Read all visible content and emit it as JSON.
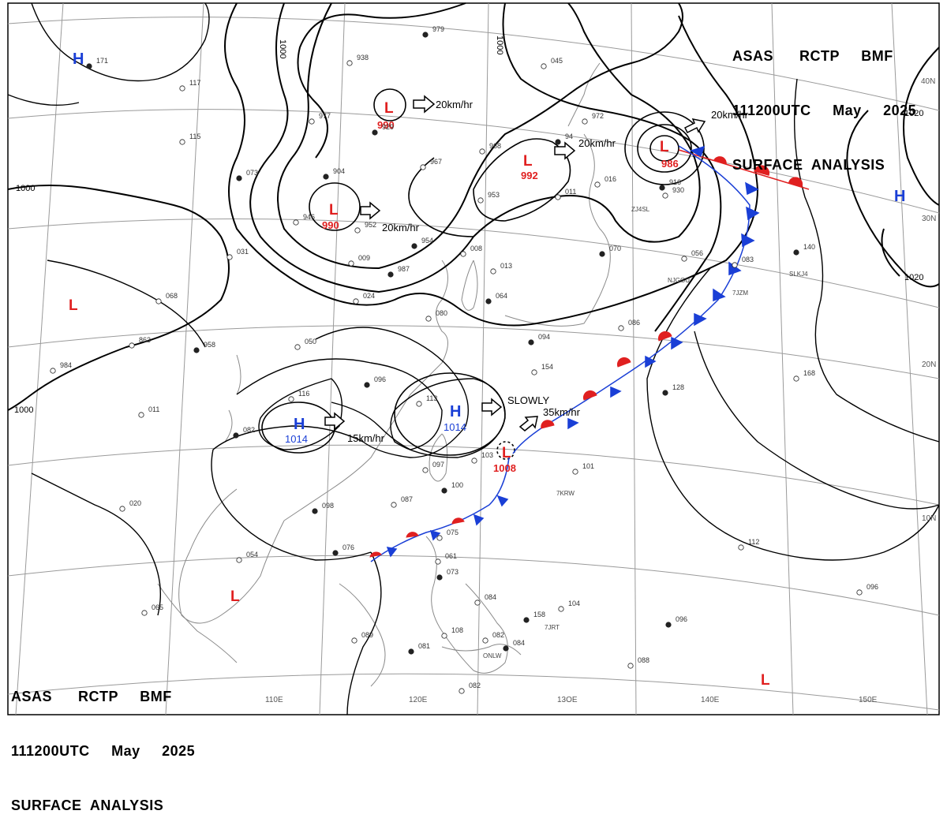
{
  "header_top": {
    "line1": "ASAS      RCTP     BMF",
    "line2": "111200UTC     May     2025",
    "line3": "SURFACE  ANALYSIS"
  },
  "header_bottom": {
    "line1": "ASAS      RCTP     BMF",
    "line2": "111200UTC     May     2025",
    "line3": "SURFACE  ANALYSIS"
  },
  "lon_labels": [
    "110E",
    "120E",
    "13OE",
    "140E",
    "150E"
  ],
  "lat_labels": [
    "40N",
    "30N",
    "20N",
    "10N"
  ],
  "isobar_labels": [
    "1000",
    "1000",
    "1000",
    "1000",
    "1020",
    "1020"
  ],
  "pressure_centers": [
    {
      "type": "L",
      "value": "990"
    },
    {
      "type": "L",
      "value": "990"
    },
    {
      "type": "L",
      "value": "992"
    },
    {
      "type": "L",
      "value": "986"
    },
    {
      "type": "L",
      "value": "1008"
    },
    {
      "type": "H",
      "value": "1014"
    },
    {
      "type": "H",
      "value": "1014"
    },
    {
      "type": "H",
      "value": ""
    },
    {
      "type": "H",
      "value": ""
    },
    {
      "type": "L",
      "value": ""
    },
    {
      "type": "L",
      "value": ""
    },
    {
      "type": "L",
      "value": ""
    }
  ],
  "motion_labels": [
    "20km/hr",
    "20km/hr",
    "20km/hr",
    "20km/hr",
    "15km/hr",
    "SLOWLY",
    "35km/hr"
  ],
  "stations": [
    {
      "id": "979"
    },
    {
      "id": "938"
    },
    {
      "id": "977"
    },
    {
      "id": "929"
    },
    {
      "id": "968"
    },
    {
      "id": "967"
    },
    {
      "id": "904"
    },
    {
      "id": "946"
    },
    {
      "id": "952"
    },
    {
      "id": "954"
    },
    {
      "id": "953"
    },
    {
      "id": "972"
    },
    {
      "id": "94"
    },
    {
      "id": "011"
    },
    {
      "id": "016"
    },
    {
      "id": "916"
    },
    {
      "id": "930"
    },
    {
      "id": "045"
    },
    {
      "id": "171"
    },
    {
      "id": "117"
    },
    {
      "id": "115"
    },
    {
      "id": "073"
    },
    {
      "id": "031"
    },
    {
      "id": "009"
    },
    {
      "id": "987"
    },
    {
      "id": "008"
    },
    {
      "id": "013"
    },
    {
      "id": "070"
    },
    {
      "id": "056"
    },
    {
      "id": "083"
    },
    {
      "id": "140"
    },
    {
      "id": "068"
    },
    {
      "id": "024"
    },
    {
      "id": "064"
    },
    {
      "id": "080"
    },
    {
      "id": "863"
    },
    {
      "id": "958"
    },
    {
      "id": "050"
    },
    {
      "id": "984"
    },
    {
      "id": "094"
    },
    {
      "id": "086"
    },
    {
      "id": "154"
    },
    {
      "id": "128"
    },
    {
      "id": "168"
    },
    {
      "id": "116"
    },
    {
      "id": "096"
    },
    {
      "id": "113"
    },
    {
      "id": "011"
    },
    {
      "id": "082"
    },
    {
      "id": "103"
    },
    {
      "id": "097"
    },
    {
      "id": "100"
    },
    {
      "id": "101"
    },
    {
      "id": "087"
    },
    {
      "id": "098"
    },
    {
      "id": "020"
    },
    {
      "id": "054"
    },
    {
      "id": "076"
    },
    {
      "id": "075"
    },
    {
      "id": "061"
    },
    {
      "id": "073"
    },
    {
      "id": "084"
    },
    {
      "id": "104"
    },
    {
      "id": "158"
    },
    {
      "id": "112"
    },
    {
      "id": "096"
    },
    {
      "id": "096"
    },
    {
      "id": "065"
    },
    {
      "id": "089"
    },
    {
      "id": "081"
    },
    {
      "id": "108"
    },
    {
      "id": "082"
    },
    {
      "id": "084"
    },
    {
      "id": "088"
    },
    {
      "id": "082"
    }
  ],
  "station_codes": [
    "NJGGU",
    "ZJ4SL",
    "7JZM",
    "SLKJ4",
    "7KRW",
    "7JRT",
    "ONLW"
  ]
}
